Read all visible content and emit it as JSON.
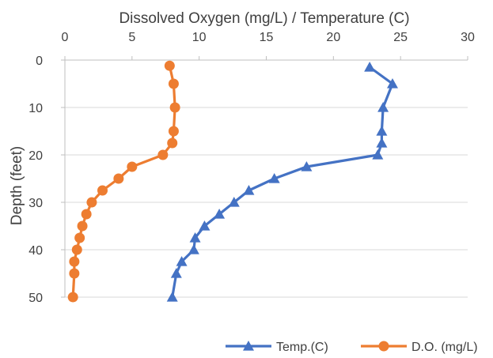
{
  "chart_data": {
    "type": "line",
    "xlabel": "Dissolved Oxygen (mg/L) / Temperature (C)",
    "ylabel": "Depth (feet)",
    "xlim": [
      0,
      30
    ],
    "ylim": [
      0,
      50
    ],
    "x_ticks": [
      0,
      5,
      10,
      15,
      20,
      25,
      30
    ],
    "y_ticks": [
      0,
      10,
      20,
      30,
      40,
      50
    ],
    "y_inverted": true,
    "x_axis_position": "top",
    "grid": "horizontal",
    "legend_position": "bottom-right",
    "series": [
      {
        "name": "Temp.(C)",
        "color": "#4472C4",
        "marker": "triangle",
        "points": [
          {
            "x": 22.7,
            "y": 1.5
          },
          {
            "x": 24.4,
            "y": 5
          },
          {
            "x": 23.7,
            "y": 10
          },
          {
            "x": 23.6,
            "y": 15
          },
          {
            "x": 23.6,
            "y": 17.5
          },
          {
            "x": 23.3,
            "y": 20
          },
          {
            "x": 18.0,
            "y": 22.5
          },
          {
            "x": 15.6,
            "y": 25
          },
          {
            "x": 13.7,
            "y": 27.5
          },
          {
            "x": 12.6,
            "y": 30
          },
          {
            "x": 11.5,
            "y": 32.5
          },
          {
            "x": 10.4,
            "y": 35
          },
          {
            "x": 9.7,
            "y": 37.5
          },
          {
            "x": 9.6,
            "y": 40
          },
          {
            "x": 8.7,
            "y": 42.5
          },
          {
            "x": 8.3,
            "y": 45
          },
          {
            "x": 8.0,
            "y": 50
          }
        ]
      },
      {
        "name": "D.O. (mg/L)",
        "color": "#ED7D31",
        "marker": "circle",
        "points": [
          {
            "x": 7.8,
            "y": 1.2
          },
          {
            "x": 8.1,
            "y": 5
          },
          {
            "x": 8.2,
            "y": 10
          },
          {
            "x": 8.1,
            "y": 15
          },
          {
            "x": 8.0,
            "y": 17.5
          },
          {
            "x": 7.3,
            "y": 20
          },
          {
            "x": 5.0,
            "y": 22.5
          },
          {
            "x": 4.0,
            "y": 25
          },
          {
            "x": 2.8,
            "y": 27.5
          },
          {
            "x": 2.0,
            "y": 30
          },
          {
            "x": 1.6,
            "y": 32.5
          },
          {
            "x": 1.3,
            "y": 35
          },
          {
            "x": 1.1,
            "y": 37.5
          },
          {
            "x": 0.9,
            "y": 40
          },
          {
            "x": 0.7,
            "y": 42.5
          },
          {
            "x": 0.7,
            "y": 45
          },
          {
            "x": 0.6,
            "y": 50
          }
        ]
      }
    ]
  }
}
